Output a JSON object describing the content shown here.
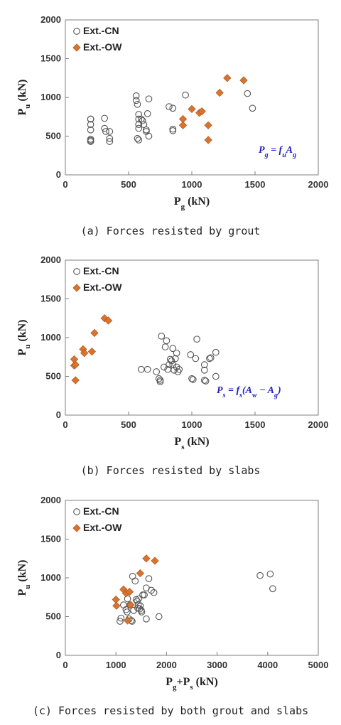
{
  "chart_data": [
    {
      "type": "scatter",
      "caption": "(a) Forces resisted by grout",
      "xlabel_main": "P",
      "xlabel_sub": "g",
      "xlabel_unit": " (kN)",
      "ylabel_main": "P",
      "ylabel_sub": "u",
      "ylabel_unit": " (kN)",
      "xlim": [
        0,
        2000
      ],
      "ylim": [
        0,
        2000
      ],
      "xticks": [
        0,
        500,
        1000,
        1500,
        2000
      ],
      "yticks": [
        0,
        500,
        1000,
        1500,
        2000
      ],
      "legend": [
        "Ext.-CN",
        "Ext.-OW"
      ],
      "legend_position": "top-left",
      "annotation": "P_g = f_u A_g",
      "series": [
        {
          "name": "Ext.-CN",
          "marker": "circle",
          "color": "#555555",
          "points": [
            [
              200,
              720
            ],
            [
              200,
              720
            ],
            [
              200,
              650
            ],
            [
              200,
              580
            ],
            [
              200,
              460
            ],
            [
              200,
              445
            ],
            [
              200,
              430
            ],
            [
              310,
              730
            ],
            [
              310,
              600
            ],
            [
              320,
              560
            ],
            [
              350,
              560
            ],
            [
              350,
              470
            ],
            [
              350,
              430
            ],
            [
              560,
              1020
            ],
            [
              560,
              960
            ],
            [
              570,
              910
            ],
            [
              580,
              780
            ],
            [
              580,
              720
            ],
            [
              580,
              650
            ],
            [
              580,
              600
            ],
            [
              570,
              470
            ],
            [
              580,
              450
            ],
            [
              600,
              720
            ],
            [
              610,
              700
            ],
            [
              620,
              650
            ],
            [
              640,
              580
            ],
            [
              640,
              560
            ],
            [
              650,
              790
            ],
            [
              660,
              980
            ],
            [
              660,
              500
            ],
            [
              820,
              880
            ],
            [
              850,
              860
            ],
            [
              850,
              590
            ],
            [
              850,
              570
            ],
            [
              950,
              1030
            ],
            [
              1440,
              1050
            ],
            [
              1480,
              860
            ]
          ]
        },
        {
          "name": "Ext.-OW",
          "marker": "diamond",
          "color": "#d9732e",
          "points": [
            [
              930,
              720
            ],
            [
              930,
              640
            ],
            [
              1000,
              850
            ],
            [
              1060,
              800
            ],
            [
              1080,
              820
            ],
            [
              1130,
              640
            ],
            [
              1130,
              450
            ],
            [
              1220,
              1060
            ],
            [
              1280,
              1250
            ],
            [
              1410,
              1220
            ]
          ]
        }
      ]
    },
    {
      "type": "scatter",
      "caption": "(b) Forces resisted by slabs",
      "xlabel_main": "P",
      "xlabel_sub": "s",
      "xlabel_unit": " (kN)",
      "ylabel_main": "P",
      "ylabel_sub": "u",
      "ylabel_unit": " (kN)",
      "xlim": [
        0,
        2000
      ],
      "ylim": [
        0,
        2000
      ],
      "xticks": [
        0,
        500,
        1000,
        1500,
        2000
      ],
      "yticks": [
        0,
        500,
        1000,
        1500,
        2000
      ],
      "legend": [
        "Ext.-CN",
        "Ext.-OW"
      ],
      "legend_position": "top-left",
      "annotation": "P_s = f_s(A_w − A_g)",
      "series": [
        {
          "name": "Ext.-CN",
          "marker": "circle",
          "color": "#555555",
          "points": [
            [
              600,
              590
            ],
            [
              650,
              590
            ],
            [
              720,
              560
            ],
            [
              740,
              470
            ],
            [
              750,
              430
            ],
            [
              750,
              450
            ],
            [
              760,
              1020
            ],
            [
              780,
              620
            ],
            [
              790,
              880
            ],
            [
              800,
              960
            ],
            [
              810,
              590
            ],
            [
              820,
              650
            ],
            [
              830,
              720
            ],
            [
              840,
              700
            ],
            [
              850,
              860
            ],
            [
              850,
              650
            ],
            [
              860,
              580
            ],
            [
              870,
              730
            ],
            [
              880,
              800
            ],
            [
              880,
              620
            ],
            [
              890,
              560
            ],
            [
              900,
              590
            ],
            [
              990,
              780
            ],
            [
              1000,
              470
            ],
            [
              1010,
              460
            ],
            [
              1030,
              730
            ],
            [
              1040,
              980
            ],
            [
              1100,
              450
            ],
            [
              1100,
              650
            ],
            [
              1100,
              580
            ],
            [
              1110,
              440
            ],
            [
              1140,
              730
            ],
            [
              1150,
              740
            ],
            [
              1190,
              810
            ],
            [
              1190,
              500
            ]
          ]
        },
        {
          "name": "Ext.-OW",
          "marker": "diamond",
          "color": "#d9732e",
          "points": [
            [
              70,
              720
            ],
            [
              70,
              640
            ],
            [
              80,
              650
            ],
            [
              80,
              450
            ],
            [
              140,
              850
            ],
            [
              150,
              800
            ],
            [
              210,
              820
            ],
            [
              230,
              1060
            ],
            [
              310,
              1250
            ],
            [
              340,
              1220
            ]
          ]
        }
      ]
    },
    {
      "type": "scatter",
      "caption": "(c) Forces resisted by both grout and slabs",
      "xlabel_main": "P",
      "xlabel_sub": "g",
      "xlabel_mid": "+P",
      "xlabel_sub2": "s",
      "xlabel_unit": " (kN)",
      "ylabel_main": "P",
      "ylabel_sub": "u",
      "ylabel_unit": " (kN)",
      "xlim": [
        0,
        5000
      ],
      "ylim": [
        0,
        2000
      ],
      "xticks": [
        0,
        1000,
        2000,
        3000,
        4000,
        5000
      ],
      "yticks": [
        0,
        500,
        1000,
        1500,
        2000
      ],
      "legend": [
        "Ext.-CN",
        "Ext.-OW"
      ],
      "legend_position": "top-left",
      "series": [
        {
          "name": "Ext.-CN",
          "marker": "circle",
          "color": "#555555",
          "points": [
            [
              1080,
              440
            ],
            [
              1100,
              480
            ],
            [
              1150,
              650
            ],
            [
              1200,
              590
            ],
            [
              1220,
              560
            ],
            [
              1230,
              730
            ],
            [
              1260,
              470
            ],
            [
              1280,
              650
            ],
            [
              1300,
              450
            ],
            [
              1320,
              440
            ],
            [
              1330,
              1020
            ],
            [
              1350,
              580
            ],
            [
              1380,
              960
            ],
            [
              1400,
              720
            ],
            [
              1420,
              700
            ],
            [
              1430,
              610
            ],
            [
              1440,
              650
            ],
            [
              1450,
              730
            ],
            [
              1470,
              600
            ],
            [
              1480,
              640
            ],
            [
              1500,
              580
            ],
            [
              1510,
              560
            ],
            [
              1530,
              780
            ],
            [
              1560,
              780
            ],
            [
              1600,
              870
            ],
            [
              1600,
              470
            ],
            [
              1650,
              990
            ],
            [
              1700,
              840
            ],
            [
              1750,
              810
            ],
            [
              1850,
              500
            ],
            [
              3850,
              1030
            ],
            [
              4050,
              1050
            ],
            [
              4100,
              860
            ]
          ]
        },
        {
          "name": "Ext.-OW",
          "marker": "diamond",
          "color": "#d9732e",
          "points": [
            [
              1000,
              720
            ],
            [
              1010,
              640
            ],
            [
              1150,
              850
            ],
            [
              1200,
              800
            ],
            [
              1230,
              450
            ],
            [
              1270,
              820
            ],
            [
              1290,
              650
            ],
            [
              1480,
              1060
            ],
            [
              1600,
              1250
            ],
            [
              1770,
              1220
            ]
          ]
        }
      ]
    }
  ]
}
